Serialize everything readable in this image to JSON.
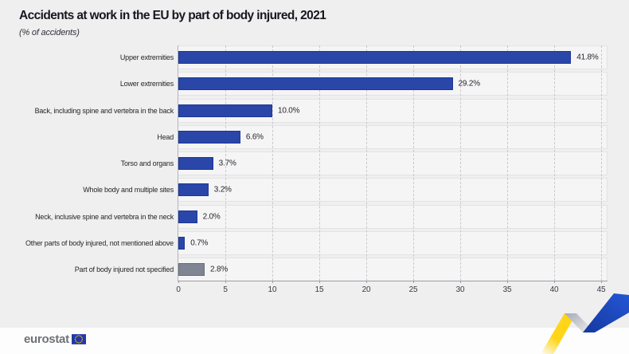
{
  "header": {
    "title": "Accidents at work in the EU by part of body injured, 2021",
    "subtitle": "(% of accidents)"
  },
  "chart_data": {
    "type": "bar",
    "orientation": "horizontal",
    "title": "Accidents at work in the EU by part of body injured, 2021",
    "subtitle": "(% of accidents)",
    "unit": "% of accidents",
    "categories": [
      "Upper extremities",
      "Lower extremities",
      "Back, including spine and vertebra in the back",
      "Head",
      "Torso and organs",
      "Whole body and multiple sites",
      "Neck, inclusive spine and vertebra in the neck",
      "Other parts of body injured, not mentioned above",
      "Part of body injured not specified"
    ],
    "values": [
      41.8,
      29.2,
      10.0,
      6.6,
      3.7,
      3.2,
      2.0,
      0.7,
      2.8
    ],
    "value_labels": [
      "41.8%",
      "29.2%",
      "10.0%",
      "6.6%",
      "3.7%",
      "3.2%",
      "2.0%",
      "0.7%",
      "2.8%"
    ],
    "bar_colors": [
      "#2a46a8",
      "#2a46a8",
      "#2a46a8",
      "#2a46a8",
      "#2a46a8",
      "#2a46a8",
      "#2a46a8",
      "#2a46a8",
      "#7f8591"
    ],
    "bar_border_colors": [
      "#1e3795",
      "#1e3795",
      "#1e3795",
      "#1e3795",
      "#1e3795",
      "#1e3795",
      "#1e3795",
      "#1e3795",
      "#676d7a"
    ],
    "xlim": [
      0,
      45
    ],
    "x_ticks": [
      0,
      5,
      10,
      15,
      20,
      25,
      30,
      35,
      40,
      45
    ],
    "grid": "vertical-dashed",
    "legend": "none"
  },
  "footer": {
    "logo_text": "eurostat"
  },
  "colors": {
    "page_background": "#efefef",
    "bar_blue": "#2a46a8",
    "bar_gray": "#7f8591",
    "ribbon_yellow": "#ffd51a",
    "ribbon_blue": "#1d4ec5",
    "flag_blue": "#2138a8",
    "flag_gold": "#ffcc00"
  }
}
